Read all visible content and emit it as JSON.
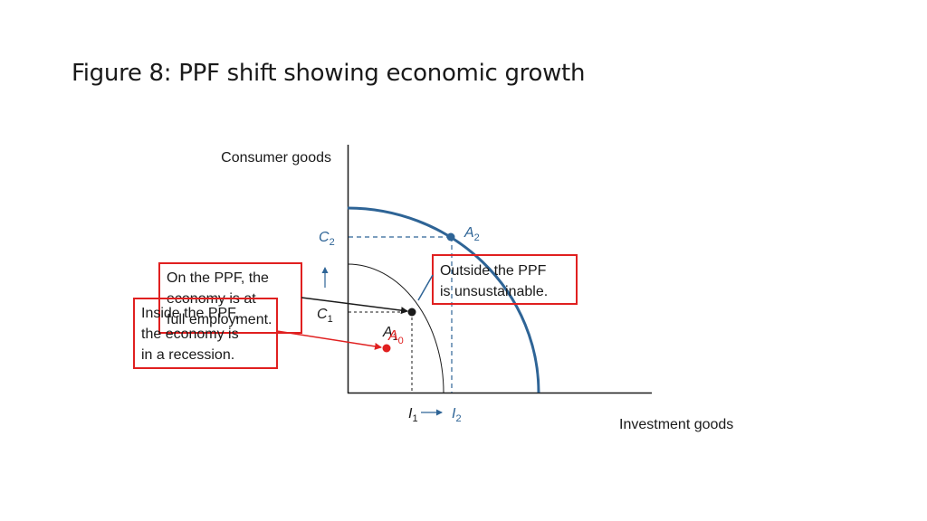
{
  "title": "Figure 8: PPF shift showing economic growth",
  "axes": {
    "y_label": "Consumer goods",
    "x_label": "Investment goods"
  },
  "points": {
    "A0": {
      "letter": "A",
      "sub": "0"
    },
    "A1": {
      "letter": "A",
      "sub": "1"
    },
    "A2": {
      "letter": "A",
      "sub": "2"
    }
  },
  "ticks": {
    "C1": {
      "letter": "C",
      "sub": "1"
    },
    "C2": {
      "letter": "C",
      "sub": "2"
    },
    "I1": {
      "letter": "I",
      "sub": "1"
    },
    "I2": {
      "letter": "I",
      "sub": "2"
    }
  },
  "callouts": {
    "on_ppf": [
      "On the PPF, the",
      "economy is at",
      "full employment."
    ],
    "inside_ppf": [
      "Inside the PPF,",
      "the economy is",
      "in a recession."
    ],
    "outside_ppf": [
      "Outside the PPF",
      "is unsustainable."
    ]
  },
  "colors": {
    "axis": "#1a1a1a",
    "ppf_outer": "#2e6496",
    "ppf_inner": "#1a1a1a",
    "blue_label": "#2e6496",
    "callout_border": "#e02020",
    "recession_point": "#e02020"
  }
}
